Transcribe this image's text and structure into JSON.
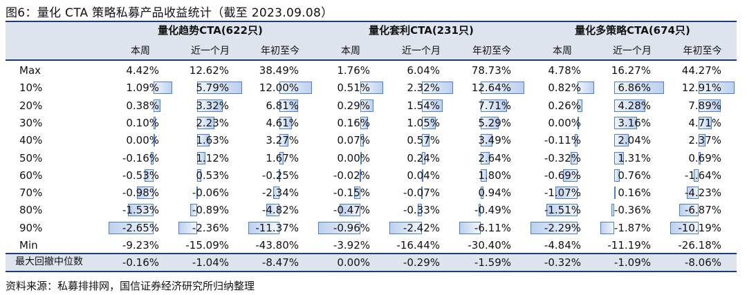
{
  "title": "图6：量化 CTA 策略私募产品收益统计（截至 2023.09.08）",
  "source": "资料来源：私募排排网，国信证券经济研究所归纳整理",
  "groups": [
    {
      "label": "量化趋势CTA(622只)"
    },
    {
      "label": "量化套利CTA(231只)"
    },
    {
      "label": "量化多策略CTA(674只)"
    }
  ],
  "subheaders": [
    "本周",
    "近一个月",
    "年初至今"
  ],
  "rows": [
    {
      "label": "Max",
      "values": [
        "4.42%",
        "12.62%",
        "38.49%",
        "1.76%",
        "6.04%",
        "78.73%",
        "4.78%",
        "16.27%",
        "44.27%"
      ]
    },
    {
      "label": "10%",
      "values": [
        "1.09%",
        "5.79%",
        "12.00%",
        "0.51%",
        "2.32%",
        "12.64%",
        "0.82%",
        "6.86%",
        "12.91%"
      ]
    },
    {
      "label": "20%",
      "values": [
        "0.38%",
        "3.32%",
        "6.81%",
        "0.29%",
        "1.54%",
        "7.71%",
        "0.26%",
        "4.28%",
        "7.89%"
      ]
    },
    {
      "label": "30%",
      "values": [
        "0.10%",
        "2.23%",
        "4.61%",
        "0.16%",
        "1.05%",
        "5.29%",
        "0.00%",
        "3.16%",
        "4.71%"
      ]
    },
    {
      "label": "40%",
      "values": [
        "0.00%",
        "1.63%",
        "3.27%",
        "0.07%",
        "0.57%",
        "3.49%",
        "-0.11%",
        "2.04%",
        "2.37%"
      ]
    },
    {
      "label": "50%",
      "values": [
        "-0.16%",
        "1.12%",
        "1.67%",
        "0.00%",
        "0.24%",
        "2.64%",
        "-0.32%",
        "1.31%",
        "0.69%"
      ]
    },
    {
      "label": "60%",
      "values": [
        "-0.53%",
        "0.53%",
        "-0.25%",
        "-0.02%",
        "0.04%",
        "1.80%",
        "-0.69%",
        "0.76%",
        "-1.64%"
      ]
    },
    {
      "label": "70%",
      "values": [
        "-0.98%",
        "-0.06%",
        "-2.34%",
        "-0.15%",
        "-0.07%",
        "0.94%",
        "-1.07%",
        "0.16%",
        "-4.23%"
      ]
    },
    {
      "label": "80%",
      "values": [
        "-1.53%",
        "-0.89%",
        "-4.82%",
        "-0.47%",
        "-0.33%",
        "-0.49%",
        "-1.51%",
        "-0.36%",
        "-6.87%"
      ]
    },
    {
      "label": "90%",
      "values": [
        "-2.65%",
        "-2.36%",
        "-11.37%",
        "-0.96%",
        "-2.42%",
        "-6.11%",
        "-2.29%",
        "-1.87%",
        "-10.19%"
      ]
    },
    {
      "label": "Min",
      "values": [
        "-9.23%",
        "-15.09%",
        "-43.80%",
        "-3.92%",
        "-16.44%",
        "-30.40%",
        "-4.84%",
        "-11.19%",
        "-26.18%"
      ]
    }
  ],
  "drawdown_row": {
    "label": "最大回撤中位数",
    "values": [
      "-0.16%",
      "-1.04%",
      "-8.47%",
      "0.00%",
      "-0.29%",
      "-1.59%",
      "-0.32%",
      "-1.09%",
      "-8.06%"
    ]
  },
  "colors": {
    "header_bg": "#dde4ee",
    "rule": "#1a3a7a",
    "bar_border": "#4a7fd0",
    "bar_fill": "#bcd0ee"
  }
}
